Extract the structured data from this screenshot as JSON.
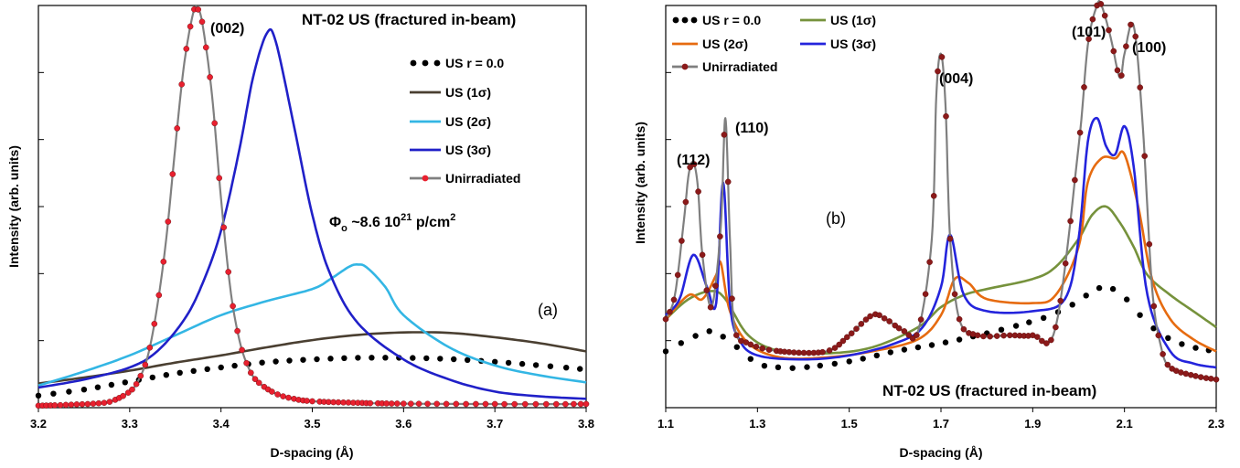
{
  "chart_data": [
    {
      "type": "line",
      "panel_label": "(a)",
      "title": "NT-02 US (fractured in-beam)",
      "xlabel": "D-spacing (Å)",
      "ylabel": "Intensity (arb. units)",
      "xlim": [
        3.2,
        3.8
      ],
      "ylim": [
        0,
        1
      ],
      "xticks": [
        3.2,
        3.3,
        3.4,
        3.5,
        3.6,
        3.7,
        3.8
      ],
      "xtick_labels": [
        "3.2",
        "3.3",
        "3.4",
        "3.5",
        "3.6",
        "3.7",
        "3.8"
      ],
      "legend_position": "upper-right",
      "annotations": [
        {
          "text": "(002)",
          "x": 3.405,
          "y": 0.955
        },
        {
          "text": "Φ",
          "sub": "o",
          "rest": " ~8.6 10",
          "sup": "21",
          "rest2": " p/cm",
          "sup2": "2",
          "x": 3.515,
          "y": 0.46
        }
      ],
      "series": [
        {
          "name": "US  r = 0.0",
          "style": "dots",
          "color": "#000000",
          "x": [
            3.2,
            3.25,
            3.3,
            3.35,
            3.4,
            3.45,
            3.5,
            3.55,
            3.6,
            3.65,
            3.7,
            3.75,
            3.8
          ],
          "y": [
            0.03,
            0.045,
            0.065,
            0.085,
            0.1,
            0.113,
            0.12,
            0.124,
            0.124,
            0.121,
            0.114,
            0.105,
            0.095
          ]
        },
        {
          "name": "US (1σ)",
          "style": "line",
          "color": "#4a3f31",
          "x": [
            3.2,
            3.25,
            3.3,
            3.35,
            3.4,
            3.45,
            3.5,
            3.55,
            3.6,
            3.65,
            3.7,
            3.75,
            3.8
          ],
          "y": [
            0.06,
            0.075,
            0.092,
            0.112,
            0.13,
            0.15,
            0.168,
            0.181,
            0.187,
            0.186,
            0.175,
            0.16,
            0.14
          ]
        },
        {
          "name": "US (2σ)",
          "style": "line",
          "color": "#33b6e4",
          "x": [
            3.2,
            3.25,
            3.3,
            3.35,
            3.4,
            3.45,
            3.5,
            3.52,
            3.54,
            3.55,
            3.56,
            3.58,
            3.6,
            3.65,
            3.7,
            3.75,
            3.8
          ],
          "y": [
            0.055,
            0.09,
            0.13,
            0.18,
            0.23,
            0.265,
            0.295,
            0.32,
            0.35,
            0.356,
            0.348,
            0.3,
            0.23,
            0.15,
            0.105,
            0.08,
            0.063
          ]
        },
        {
          "name": "US (3σ)",
          "style": "line",
          "color": "#2020c8",
          "x": [
            3.2,
            3.25,
            3.3,
            3.33,
            3.36,
            3.38,
            3.4,
            3.42,
            3.435,
            3.45,
            3.46,
            3.48,
            3.5,
            3.52,
            3.55,
            3.6,
            3.65,
            3.7,
            3.75,
            3.8
          ],
          "y": [
            0.05,
            0.07,
            0.1,
            0.14,
            0.22,
            0.31,
            0.44,
            0.64,
            0.82,
            0.93,
            0.91,
            0.7,
            0.48,
            0.33,
            0.21,
            0.12,
            0.07,
            0.04,
            0.028,
            0.022
          ]
        },
        {
          "name": "Unirradiated",
          "style": "line-markers",
          "color": "#808080",
          "marker_color": "#e8202f",
          "x": [
            3.2,
            3.22,
            3.24,
            3.26,
            3.28,
            3.3,
            3.31,
            3.32,
            3.33,
            3.34,
            3.35,
            3.36,
            3.37,
            3.375,
            3.38,
            3.39,
            3.4,
            3.41,
            3.42,
            3.43,
            3.44,
            3.46,
            3.48,
            3.5,
            3.55,
            3.6,
            3.7,
            3.8
          ],
          "y": [
            0.005,
            0.006,
            0.008,
            0.01,
            0.016,
            0.04,
            0.07,
            0.13,
            0.25,
            0.42,
            0.65,
            0.86,
            0.985,
            0.99,
            0.95,
            0.78,
            0.52,
            0.3,
            0.17,
            0.1,
            0.065,
            0.035,
            0.022,
            0.016,
            0.012,
            0.01,
            0.009,
            0.009
          ]
        }
      ]
    },
    {
      "type": "line",
      "panel_label": "(b)",
      "title": "NT-02 US (fractured in-beam)",
      "xlabel": "D-spacing (Å)",
      "ylabel": "Intensity (arb. units)",
      "xlim": [
        1.1,
        2.3
      ],
      "ylim": [
        0,
        1
      ],
      "xticks": [
        1.1,
        1.3,
        1.5,
        1.7,
        1.9,
        2.1,
        2.3
      ],
      "xtick_labels": [
        "1.1",
        "1.3",
        "1.5",
        "1.7",
        "1.9",
        "2.1",
        "2.3"
      ],
      "legend_position": "upper-left",
      "annotations": [
        {
          "text": "(112)",
          "x": 1.162,
          "y": 0.66
        },
        {
          "text": "(110)",
          "x": 1.265,
          "y": 0.735
        },
        {
          "text": "(004)",
          "x": 1.718,
          "y": 0.88
        },
        {
          "text": "(101)",
          "x": 2.048,
          "y": 1.0
        },
        {
          "text": "(100)",
          "x": 2.145,
          "y": 0.96
        }
      ],
      "series": [
        {
          "name": "US  r = 0.0",
          "style": "dots",
          "color": "#000000",
          "x": [
            1.1,
            1.15,
            1.2,
            1.25,
            1.3,
            1.35,
            1.4,
            1.5,
            1.6,
            1.7,
            1.8,
            1.9,
            1.95,
            2.0,
            2.03,
            2.06,
            2.09,
            2.12,
            2.15,
            2.2,
            2.25,
            2.3
          ],
          "y": [
            0.14,
            0.17,
            0.19,
            0.155,
            0.11,
            0.1,
            0.1,
            0.115,
            0.14,
            0.16,
            0.185,
            0.215,
            0.235,
            0.265,
            0.29,
            0.3,
            0.285,
            0.25,
            0.21,
            0.17,
            0.15,
            0.14
          ]
        },
        {
          "name": "US (1σ)",
          "style": "line",
          "color": "#76923c",
          "x": [
            1.1,
            1.15,
            1.2,
            1.23,
            1.28,
            1.35,
            1.45,
            1.55,
            1.65,
            1.7,
            1.75,
            1.8,
            1.9,
            1.95,
            2.0,
            2.03,
            2.06,
            2.09,
            2.12,
            2.15,
            2.2,
            2.25,
            2.3
          ],
          "y": [
            0.22,
            0.27,
            0.29,
            0.27,
            0.18,
            0.14,
            0.135,
            0.15,
            0.2,
            0.25,
            0.28,
            0.295,
            0.32,
            0.35,
            0.42,
            0.48,
            0.5,
            0.46,
            0.4,
            0.33,
            0.28,
            0.24,
            0.2
          ]
        },
        {
          "name": "US (2σ)",
          "style": "line",
          "color": "#e66b10",
          "x": [
            1.1,
            1.15,
            1.18,
            1.21,
            1.22,
            1.24,
            1.28,
            1.35,
            1.45,
            1.55,
            1.65,
            1.7,
            1.73,
            1.76,
            1.8,
            1.9,
            1.95,
            2.0,
            2.02,
            2.05,
            2.08,
            2.1,
            2.13,
            2.16,
            2.2,
            2.25,
            2.3
          ],
          "y": [
            0.22,
            0.28,
            0.27,
            0.33,
            0.36,
            0.24,
            0.16,
            0.125,
            0.125,
            0.14,
            0.17,
            0.23,
            0.32,
            0.31,
            0.27,
            0.26,
            0.28,
            0.4,
            0.56,
            0.62,
            0.62,
            0.63,
            0.5,
            0.32,
            0.22,
            0.17,
            0.14
          ]
        },
        {
          "name": "US (3σ)",
          "style": "line",
          "color": "#2424dc",
          "x": [
            1.1,
            1.13,
            1.16,
            1.19,
            1.21,
            1.225,
            1.24,
            1.26,
            1.3,
            1.4,
            1.5,
            1.6,
            1.66,
            1.7,
            1.72,
            1.75,
            1.8,
            1.9,
            1.97,
            2.0,
            2.02,
            2.04,
            2.06,
            2.08,
            2.1,
            2.12,
            2.15,
            2.2,
            2.25,
            2.3
          ],
          "y": [
            0.23,
            0.27,
            0.38,
            0.3,
            0.26,
            0.56,
            0.26,
            0.17,
            0.13,
            0.12,
            0.13,
            0.16,
            0.2,
            0.3,
            0.43,
            0.28,
            0.24,
            0.24,
            0.27,
            0.42,
            0.66,
            0.72,
            0.65,
            0.63,
            0.7,
            0.6,
            0.28,
            0.14,
            0.11,
            0.1
          ]
        },
        {
          "name": "Unirradiated",
          "style": "line-markers",
          "color": "#7f7f7f",
          "marker_color": "#8b1a1a",
          "x": [
            1.1,
            1.12,
            1.14,
            1.15,
            1.16,
            1.17,
            1.18,
            1.2,
            1.22,
            1.23,
            1.24,
            1.25,
            1.28,
            1.35,
            1.45,
            1.5,
            1.55,
            1.58,
            1.62,
            1.65,
            1.68,
            1.69,
            1.7,
            1.71,
            1.72,
            1.74,
            1.78,
            1.85,
            1.9,
            1.95,
            2.0,
            2.02,
            2.04,
            2.05,
            2.07,
            2.09,
            2.1,
            2.12,
            2.14,
            2.16,
            2.18,
            2.2,
            2.25,
            2.3
          ],
          "y": [
            0.22,
            0.28,
            0.47,
            0.58,
            0.61,
            0.55,
            0.38,
            0.25,
            0.45,
            0.72,
            0.42,
            0.2,
            0.16,
            0.14,
            0.14,
            0.18,
            0.23,
            0.22,
            0.19,
            0.19,
            0.42,
            0.78,
            0.88,
            0.75,
            0.42,
            0.22,
            0.18,
            0.18,
            0.18,
            0.2,
            0.65,
            0.9,
            1.0,
            1.0,
            0.92,
            0.82,
            0.88,
            0.95,
            0.7,
            0.3,
            0.15,
            0.1,
            0.08,
            0.07
          ]
        }
      ]
    }
  ]
}
